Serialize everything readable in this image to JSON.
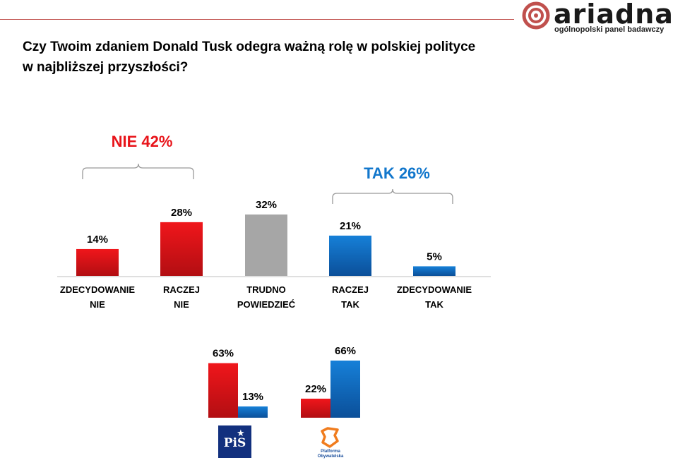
{
  "header": {
    "brand": "ariadna",
    "brand_tagline": "ogólnopolski panel badawczy",
    "question_line1": "Czy Twoim zdaniem Donald Tusk odegra ważną rolę w polskiej polityce",
    "question_line2": "w najbliższej przyszłości?"
  },
  "colors": {
    "no": "#e8141a",
    "neutral": "#a6a6a6",
    "yes": "#1277cc",
    "no_label": "#e8141a",
    "yes_label": "#1277cc"
  },
  "groups": {
    "no_label": "NIE 42%",
    "yes_label": "TAK 26%"
  },
  "chart_data": [
    {
      "type": "bar",
      "title": "",
      "categories": [
        [
          "ZDECYDOWANIE",
          "NIE"
        ],
        [
          "RACZEJ",
          "NIE"
        ],
        [
          "TRUDNO",
          "POWIEDZIEĆ"
        ],
        [
          "RACZEJ",
          "TAK"
        ],
        [
          "ZDECYDOWANIE",
          "TAK"
        ]
      ],
      "values": [
        14,
        28,
        32,
        21,
        5
      ],
      "value_labels": [
        "14%",
        "28%",
        "32%",
        "21%",
        "5%"
      ],
      "bar_colors": [
        "no",
        "no",
        "neutral",
        "yes",
        "yes"
      ],
      "ylim": [
        0,
        32
      ]
    },
    {
      "type": "bar",
      "title": "",
      "categories": [
        "PiS",
        "Platforma Obywatelska"
      ],
      "series": [
        {
          "name": "NIE",
          "values": [
            63,
            22
          ],
          "labels": [
            "63%",
            "22%"
          ],
          "color": "no"
        },
        {
          "name": "TAK",
          "values": [
            13,
            66
          ],
          "labels": [
            "13%",
            "66%"
          ],
          "color": "yes"
        }
      ],
      "ylim": [
        0,
        66
      ]
    }
  ],
  "party_logos": {
    "pis": "PiS",
    "po_line1": "Platforma",
    "po_line2": "Obywatelska"
  }
}
